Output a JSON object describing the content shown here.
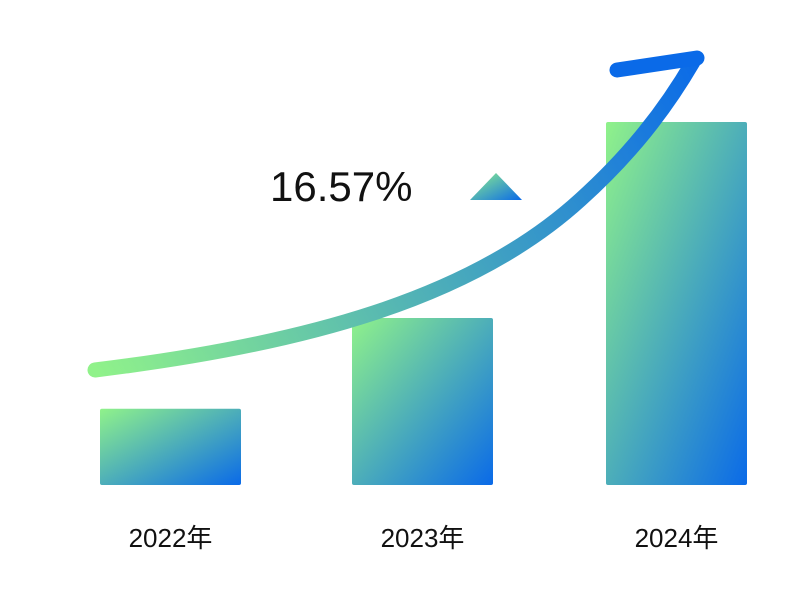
{
  "chart_data": {
    "type": "bar",
    "annotation": "16.57%",
    "categories": [
      "2022年",
      "2023年",
      "2024年"
    ],
    "values": [
      21,
      46,
      100
    ],
    "ylim": [
      0,
      100
    ],
    "colors": [
      "#90f28a",
      "#0a6ae8"
    ]
  }
}
